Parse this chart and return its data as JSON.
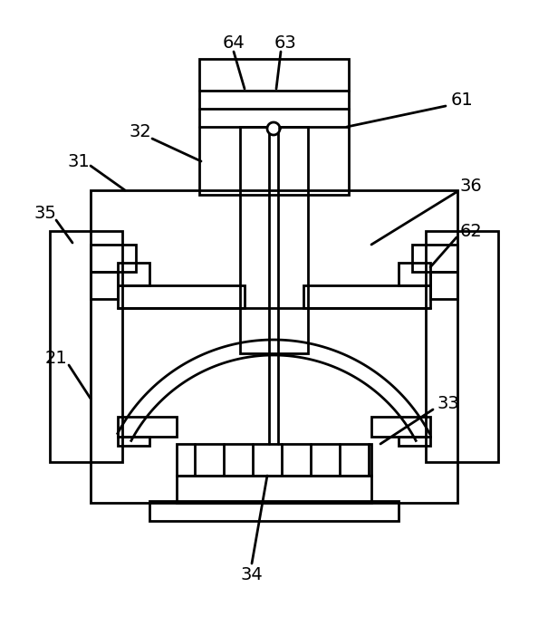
{
  "bg_color": "#ffffff",
  "line_color": "#000000",
  "lw": 2.0,
  "lw_thin": 1.2,
  "label_fs": 14
}
